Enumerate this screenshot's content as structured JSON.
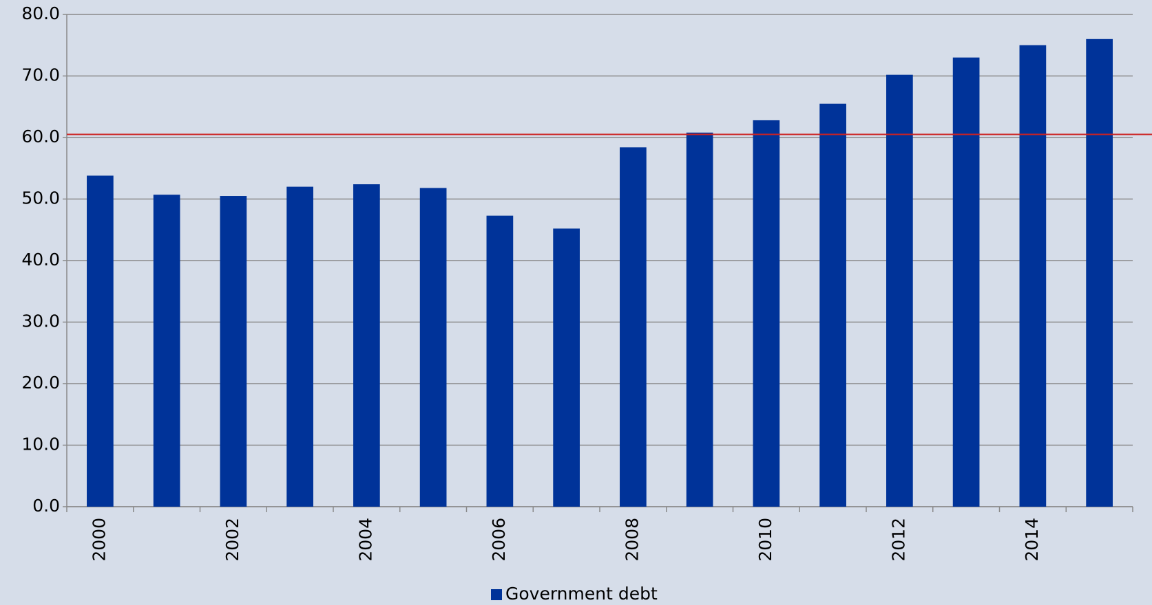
{
  "chart_data": {
    "type": "bar",
    "categories": [
      "2000",
      null,
      "2002",
      null,
      "2004",
      null,
      "2006",
      null,
      "2008",
      null,
      "2010",
      null,
      "2012",
      null,
      "2014",
      null
    ],
    "series": [
      {
        "name": "Government debt",
        "color": "#003399",
        "values": [
          53.8,
          50.7,
          50.5,
          52.0,
          52.4,
          51.8,
          47.3,
          45.2,
          58.4,
          60.8,
          62.8,
          65.5,
          70.2,
          73.0,
          75.0,
          76.0
        ]
      }
    ],
    "ylim": [
      0,
      80
    ],
    "yticks": [
      {
        "value": 0,
        "label": "0.0"
      },
      {
        "value": 10,
        "label": "10.0"
      },
      {
        "value": 20,
        "label": "20.0"
      },
      {
        "value": 30,
        "label": "30.0"
      },
      {
        "value": 40,
        "label": "40.0"
      },
      {
        "value": 50,
        "label": "50.0"
      },
      {
        "value": 60,
        "label": "60.0"
      },
      {
        "value": 70,
        "label": "70.0"
      },
      {
        "value": 80,
        "label": "80.0"
      }
    ],
    "grid": true,
    "reference_line": {
      "value": 60.5,
      "color": "#cc2222"
    },
    "legend": "bottom"
  }
}
